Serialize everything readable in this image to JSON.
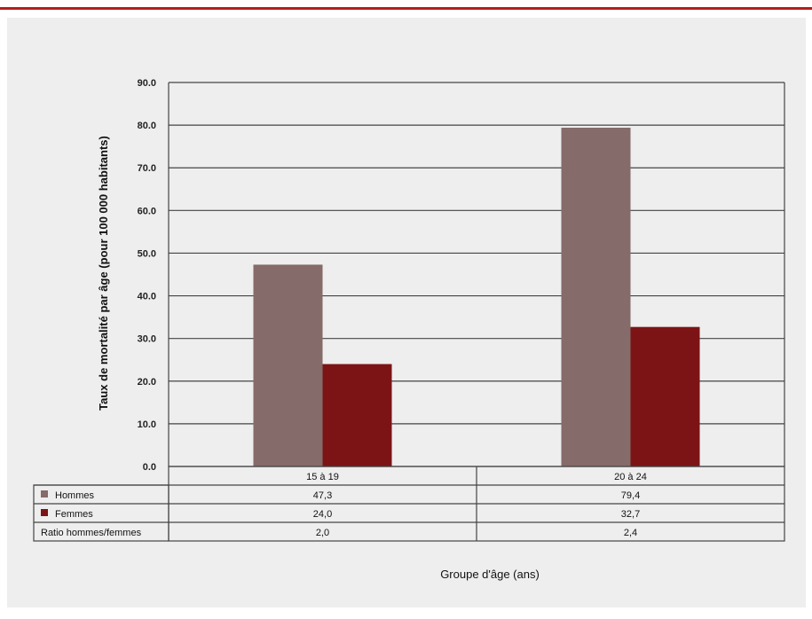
{
  "chart_data": {
    "type": "bar",
    "categories": [
      "15 à 19",
      "20 à 24"
    ],
    "series": [
      {
        "name": "Hommes",
        "values": [
          47.3,
          79.4
        ],
        "labels": [
          "47,3",
          "79,4"
        ],
        "color": "#856b69"
      },
      {
        "name": "Femmes",
        "values": [
          24.0,
          32.7
        ],
        "labels": [
          "24,0",
          "32,7"
        ],
        "color": "#7c1416"
      }
    ],
    "table_extra_row": {
      "name": "Ratio hommes/femmes",
      "labels": [
        "2,0",
        "2,4"
      ]
    },
    "ylabel": "Taux de mortalité par âge (pour 100 000 habitants)",
    "xlabel": "Groupe d'âge (ans)",
    "ylim": [
      0,
      90
    ],
    "yticks": [
      "0.0",
      "10.0",
      "20.0",
      "30.0",
      "40.0",
      "50.0",
      "60.0",
      "70.0",
      "80.0",
      "90.0"
    ],
    "grid": true,
    "legend": "data-table"
  }
}
